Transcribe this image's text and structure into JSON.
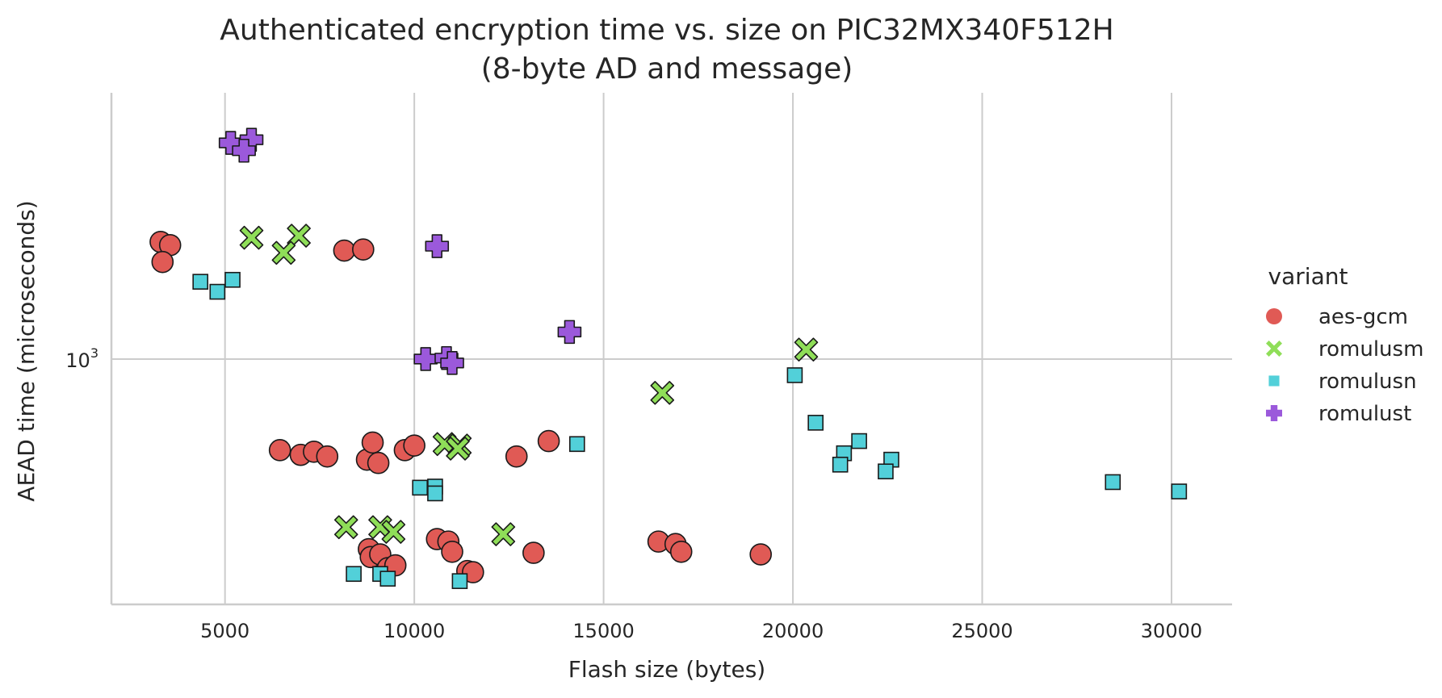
{
  "chart_data": {
    "type": "scatter",
    "title_line1": "Authenticated encryption time vs. size on PIC32MX340F512H",
    "title_line2": "(8-byte AD and message)",
    "xlabel": "Flash size (bytes)",
    "ylabel": "AEAD time (microseconds)",
    "x_scale": "linear",
    "y_scale": "log",
    "xlim": [
      2000,
      31600
    ],
    "ylim": [
      282,
      3950
    ],
    "x_ticks": [
      5000,
      10000,
      15000,
      20000,
      25000,
      30000
    ],
    "x_tick_labels": [
      "5000",
      "10000",
      "15000",
      "20000",
      "25000",
      "30000"
    ],
    "y_ticks": [
      1000
    ],
    "y_tick_label_base": "10",
    "y_tick_label_exp": "3",
    "grid": true,
    "legend": {
      "title": "variant",
      "placement": "right"
    },
    "series": [
      {
        "name": "aes-gcm",
        "marker": "circle",
        "color": "#e05a55",
        "points": [
          [
            3300,
            1830
          ],
          [
            3550,
            1800
          ],
          [
            3350,
            1650
          ],
          [
            8150,
            1750
          ],
          [
            8650,
            1760
          ],
          [
            6450,
            625
          ],
          [
            7000,
            610
          ],
          [
            7350,
            620
          ],
          [
            7700,
            605
          ],
          [
            8750,
            595
          ],
          [
            8900,
            650
          ],
          [
            9050,
            585
          ],
          [
            9750,
            625
          ],
          [
            10000,
            640
          ],
          [
            12700,
            605
          ],
          [
            13550,
            655
          ],
          [
            8800,
            375
          ],
          [
            8850,
            360
          ],
          [
            9100,
            365
          ],
          [
            9300,
            340
          ],
          [
            9500,
            345
          ],
          [
            10600,
            395
          ],
          [
            10900,
            390
          ],
          [
            11000,
            370
          ],
          [
            11400,
            335
          ],
          [
            11550,
            333
          ],
          [
            13150,
            368
          ],
          [
            16450,
            390
          ],
          [
            16900,
            385
          ],
          [
            17050,
            370
          ],
          [
            19150,
            365
          ]
        ]
      },
      {
        "name": "romulusm",
        "marker": "x",
        "color": "#8fde58",
        "points": [
          [
            5700,
            1870
          ],
          [
            6950,
            1890
          ],
          [
            6550,
            1730
          ],
          [
            20350,
            1050
          ],
          [
            16550,
            840
          ],
          [
            10800,
            645
          ],
          [
            11200,
            640
          ],
          [
            11150,
            630
          ],
          [
            8200,
            420
          ],
          [
            9100,
            420
          ],
          [
            9450,
            410
          ],
          [
            12350,
            405
          ]
        ]
      },
      {
        "name": "romulusn",
        "marker": "square",
        "color": "#52d0d9",
        "points": [
          [
            4350,
            1490
          ],
          [
            4800,
            1415
          ],
          [
            5200,
            1505
          ],
          [
            20050,
            920
          ],
          [
            20600,
            720
          ],
          [
            21750,
            655
          ],
          [
            21350,
            615
          ],
          [
            21250,
            580
          ],
          [
            22600,
            595
          ],
          [
            22450,
            560
          ],
          [
            14300,
            645
          ],
          [
            10150,
            515
          ],
          [
            10550,
            518
          ],
          [
            10550,
            500
          ],
          [
            28450,
            530
          ],
          [
            30200,
            505
          ],
          [
            8400,
            330
          ],
          [
            9100,
            330
          ],
          [
            9300,
            322
          ],
          [
            11200,
            318
          ]
        ]
      },
      {
        "name": "romulust",
        "marker": "plus",
        "color": "#9b59db",
        "points": [
          [
            5150,
            3050
          ],
          [
            5700,
            3100
          ],
          [
            5500,
            2930
          ],
          [
            10600,
            1790
          ],
          [
            14100,
            1150
          ],
          [
            10300,
            1000
          ],
          [
            10850,
            1005
          ],
          [
            11000,
            980
          ]
        ]
      }
    ]
  }
}
